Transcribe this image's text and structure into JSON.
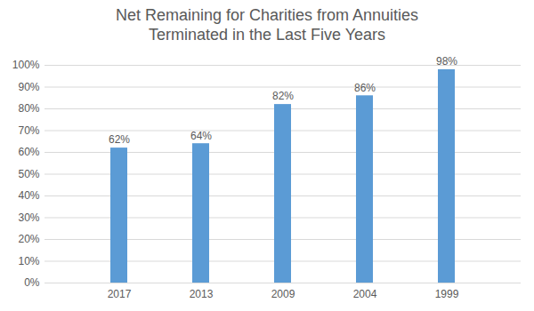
{
  "chart_data": {
    "type": "bar",
    "title": "Net Remaining for Charities from Annuities\nTerminated in the Last Five Years",
    "categories": [
      "2017",
      "2013",
      "2009",
      "2004",
      "1999"
    ],
    "values": [
      62,
      64,
      82,
      86,
      98
    ],
    "value_labels": [
      "62%",
      "64%",
      "82%",
      "86%",
      "98%"
    ],
    "data_labels": true,
    "color": "#5b9bd5",
    "ylim": [
      0,
      100
    ],
    "yticks": [
      {
        "value": 0,
        "label": "0%"
      },
      {
        "value": 10,
        "label": "10%"
      },
      {
        "value": 20,
        "label": "20%"
      },
      {
        "value": 30,
        "label": "30%"
      },
      {
        "value": 40,
        "label": "40%"
      },
      {
        "value": 50,
        "label": "50%"
      },
      {
        "value": 60,
        "label": "60%"
      },
      {
        "value": 70,
        "label": "70%"
      },
      {
        "value": 80,
        "label": "80%"
      },
      {
        "value": 90,
        "label": "90%"
      },
      {
        "value": 100,
        "label": "100%"
      }
    ],
    "grid": true
  }
}
